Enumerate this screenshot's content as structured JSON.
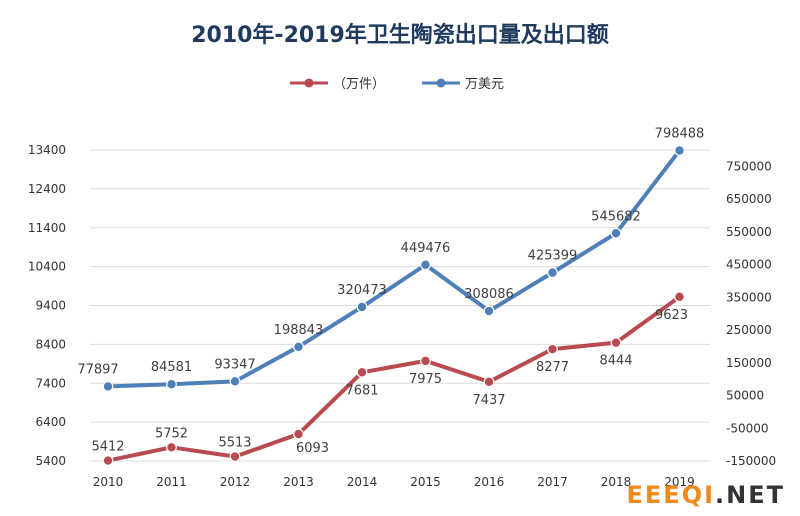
{
  "colors": {
    "series_red": "#b94a4f",
    "series_blue": "#4f7fb8",
    "title": "#1f3a5f",
    "grid": "#dcdcdc",
    "watermark_orange": "#f08a1c",
    "watermark_dark": "#333333"
  },
  "watermark": {
    "orange": "EEEQI",
    "dark": ".NET"
  },
  "chart_data": {
    "type": "line",
    "title": "2010年-2019年卫生陶瓷出口量及出口额",
    "categories": [
      "2010",
      "2011",
      "2012",
      "2013",
      "2014",
      "2015",
      "2016",
      "2017",
      "2018",
      "2019"
    ],
    "legend_position": "top-center",
    "grid": true,
    "series": [
      {
        "name": "（万件）",
        "axis": "left",
        "values": [
          5412,
          5752,
          5513,
          6093,
          7681,
          7975,
          7437,
          8277,
          8444,
          9623
        ],
        "labels": [
          "5412",
          "5752",
          "5513",
          "6093",
          "7681",
          "7975",
          "7437",
          "8277",
          "8444",
          "9623"
        ]
      },
      {
        "name": "万美元",
        "axis": "right",
        "values": [
          77897,
          84581,
          93347,
          198843,
          320473,
          449476,
          308086,
          425399,
          545682,
          798488
        ],
        "labels": [
          "77897",
          "84581",
          "93347",
          "198843",
          "320473",
          "449476",
          "308086",
          "425399",
          "545682",
          "798488"
        ]
      }
    ],
    "y_left": {
      "lim": [
        5400,
        13400
      ],
      "ticks": [
        5400,
        6400,
        7400,
        8400,
        9400,
        10400,
        11400,
        12400,
        13400
      ],
      "tick_labels": [
        "5400",
        "6400",
        "7400",
        "8400",
        "9400",
        "10400",
        "11400",
        "12400",
        "13400"
      ]
    },
    "y_right": {
      "lim": [
        -150000,
        800000
      ],
      "ticks": [
        -150000,
        -50000,
        50000,
        150000,
        250000,
        350000,
        450000,
        550000,
        650000,
        750000
      ],
      "tick_labels": [
        "-150000",
        "-50000",
        "50000",
        "150000",
        "250000",
        "350000",
        "450000",
        "550000",
        "650000",
        "750000"
      ]
    }
  }
}
